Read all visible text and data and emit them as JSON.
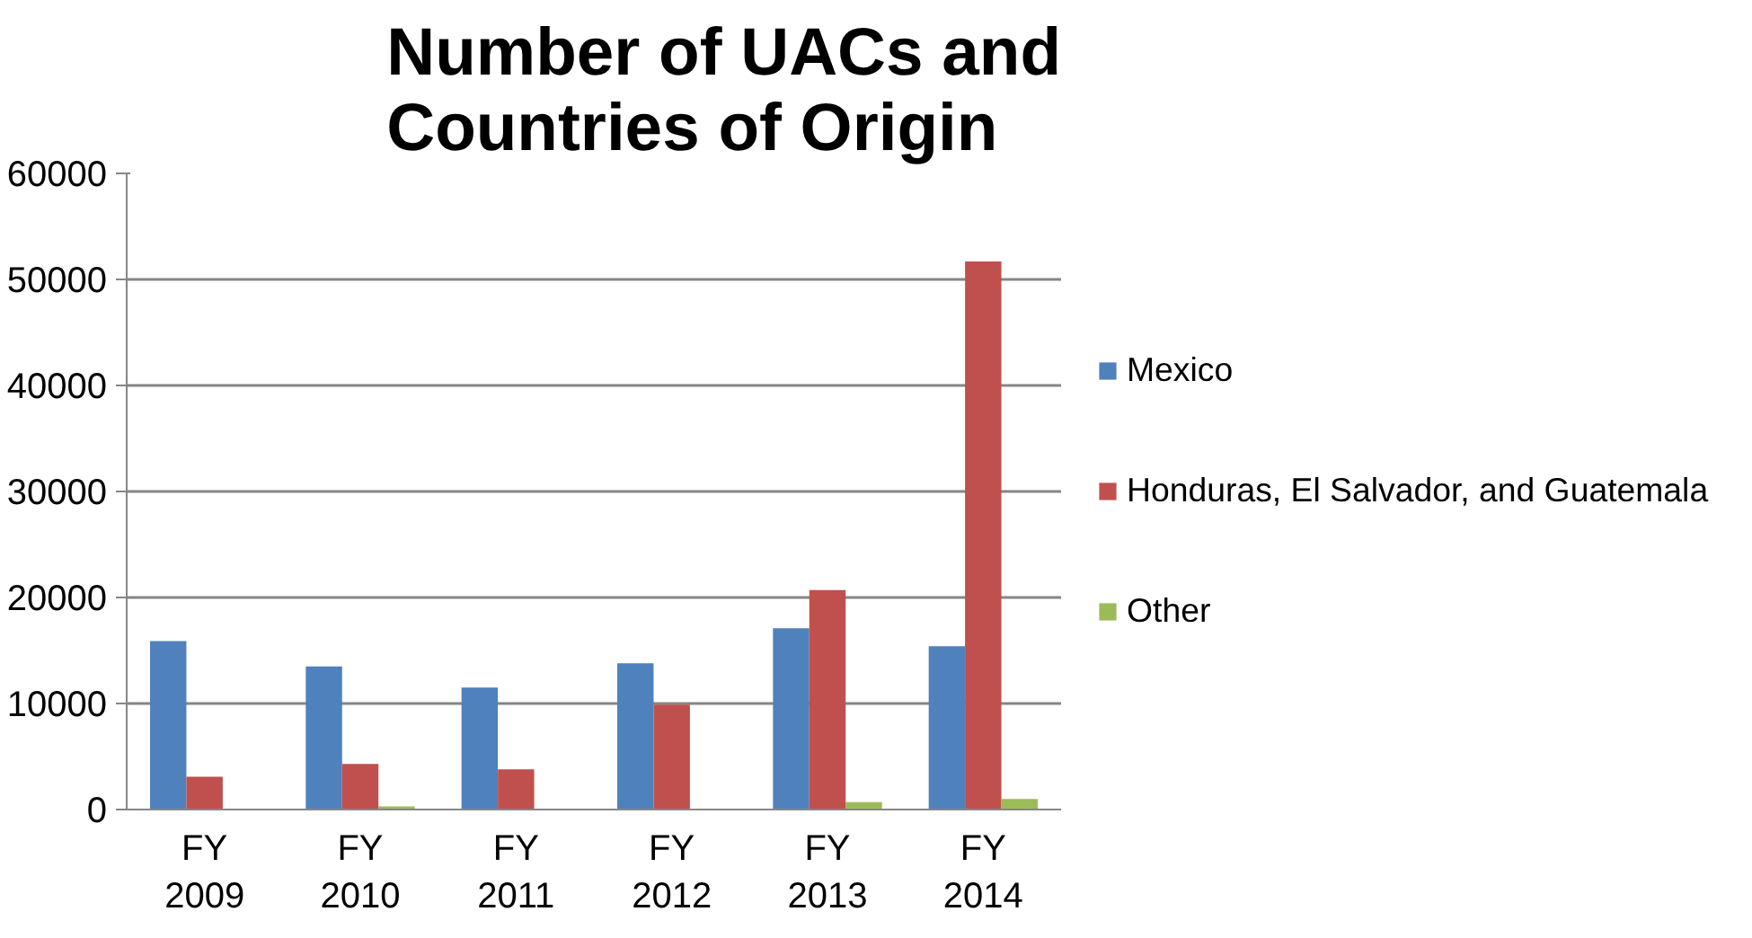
{
  "chart_data": {
    "type": "bar",
    "title": "Number of UACs and Countries of Origin",
    "categories": [
      "FY 2009",
      "FY 2010",
      "FY 2011",
      "FY 2012",
      "FY 2013",
      "FY 2014"
    ],
    "series": [
      {
        "name": "Mexico",
        "color": "#4f81bd",
        "values": [
          15900,
          13500,
          11500,
          13800,
          17100,
          15400
        ]
      },
      {
        "name": "Honduras, El Salvador, and Guatemala",
        "color": "#c0504d",
        "values": [
          3100,
          4300,
          3800,
          9900,
          20700,
          51700
        ]
      },
      {
        "name": "Other",
        "color": "#9bbb59",
        "values": [
          null,
          300,
          null,
          null,
          700,
          1000
        ]
      }
    ],
    "ylim": [
      0,
      60000
    ],
    "yticks": [
      0,
      10000,
      20000,
      30000,
      40000,
      50000,
      60000
    ],
    "grid": "y",
    "legend": "right"
  }
}
